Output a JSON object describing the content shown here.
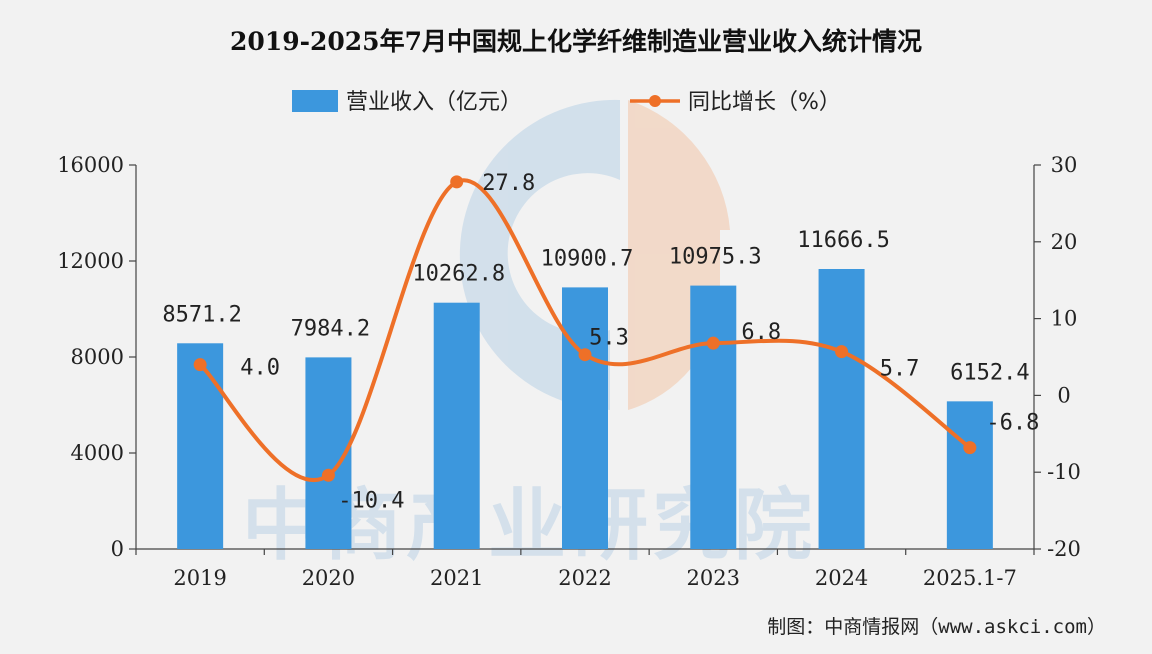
{
  "chart_data": {
    "type": "bar",
    "title": "2019-2025年7月中国规上化学纤维制造业营业收入统计情况",
    "categories": [
      "2019",
      "2020",
      "2021",
      "2022",
      "2023",
      "2024",
      "2025.1-7"
    ],
    "series": [
      {
        "name": "营业收入（亿元）",
        "type": "bar",
        "axis": "left",
        "color": "#3c97dd",
        "values": [
          8571.2,
          7984.2,
          10262.8,
          10900.7,
          10975.3,
          11666.5,
          6152.4
        ],
        "labels": [
          "8571.2",
          "7984.2",
          "10262.8",
          "10900.7",
          "10975.3",
          "11666.5",
          "6152.4"
        ]
      },
      {
        "name": "同比增长（%）",
        "type": "line",
        "axis": "right",
        "color": "#ee7028",
        "smooth": true,
        "values": [
          4.0,
          -10.4,
          27.8,
          5.3,
          6.8,
          5.7,
          -6.8
        ],
        "labels": [
          "4.0",
          "-10.4",
          "27.8",
          "5.3",
          "6.8",
          "5.7",
          "-6.8"
        ]
      }
    ],
    "y_left": {
      "min": 0,
      "max": 16000,
      "ticks": [
        "0",
        "4000",
        "8000",
        "12000",
        "16000"
      ]
    },
    "y_right": {
      "min": -20,
      "max": 30,
      "ticks": [
        "-20",
        "-10",
        "0",
        "10",
        "20",
        "30"
      ]
    },
    "legend_position": "top-center",
    "grid": false
  },
  "source": "制图：中商情报网（www.askci.com）",
  "watermark": "中商产业研究院"
}
